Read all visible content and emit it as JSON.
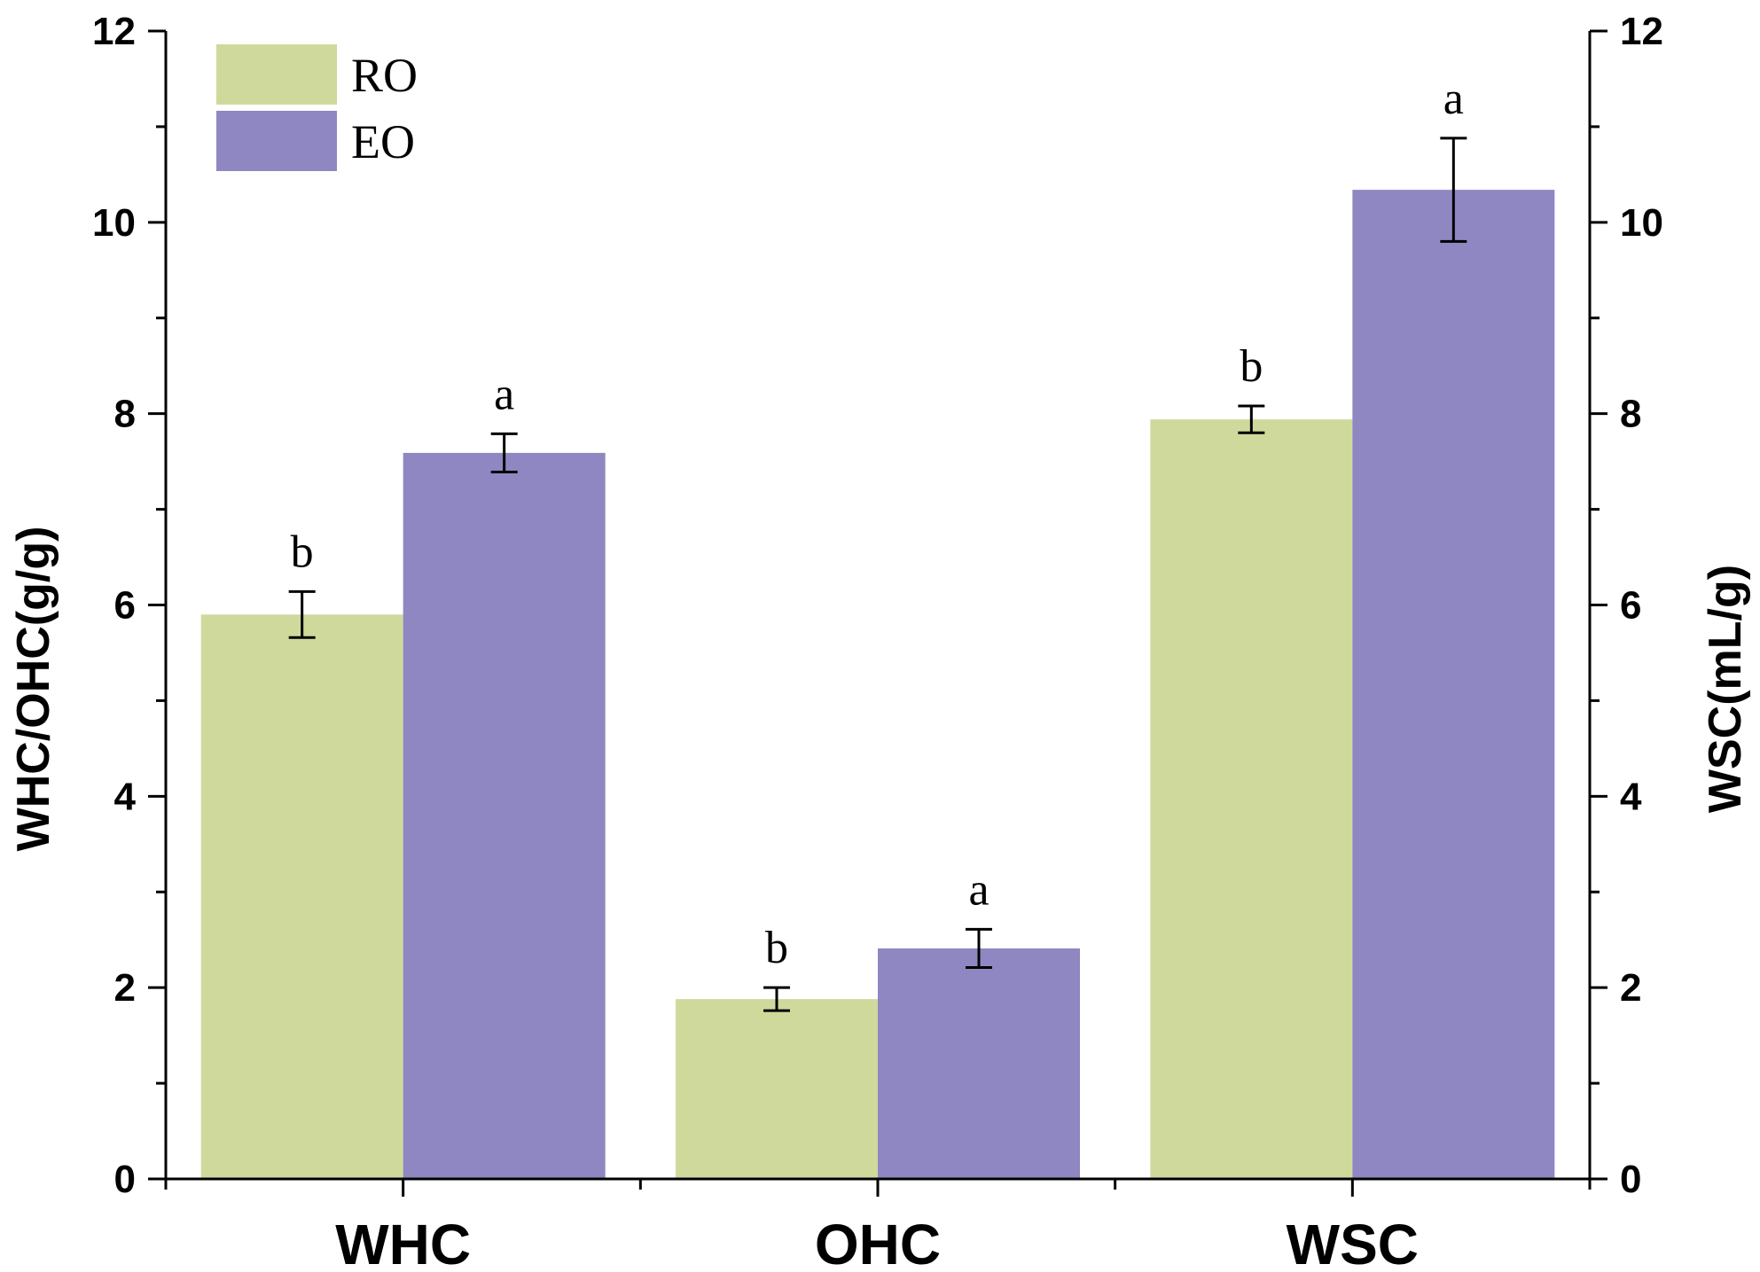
{
  "chart_data": {
    "type": "bar",
    "categories": [
      "WHC",
      "OHC",
      "WSC"
    ],
    "series": [
      {
        "name": "RO",
        "color": "#d0d99c",
        "values": [
          5.9,
          1.88,
          7.94
        ],
        "errors": [
          0.24,
          0.12,
          0.14
        ],
        "labels": [
          "b",
          "b",
          "b"
        ]
      },
      {
        "name": "EO",
        "color": "#8e87c2",
        "values": [
          7.59,
          2.41,
          10.34
        ],
        "errors": [
          0.2,
          0.2,
          0.54
        ],
        "labels": [
          "a",
          "a",
          "a"
        ]
      }
    ],
    "ylabel": "WHC/OHC(g/g)",
    "y2label": "WSC(mL/g)",
    "ylim": [
      0,
      12
    ],
    "y2lim": [
      0,
      12
    ],
    "yticks": [
      "0",
      "2",
      "4",
      "6",
      "8",
      "10",
      "12"
    ],
    "y2ticks": [
      "0",
      "2",
      "4",
      "6",
      "8",
      "10",
      "12"
    ],
    "legend_position": "top-left",
    "grid": false
  }
}
